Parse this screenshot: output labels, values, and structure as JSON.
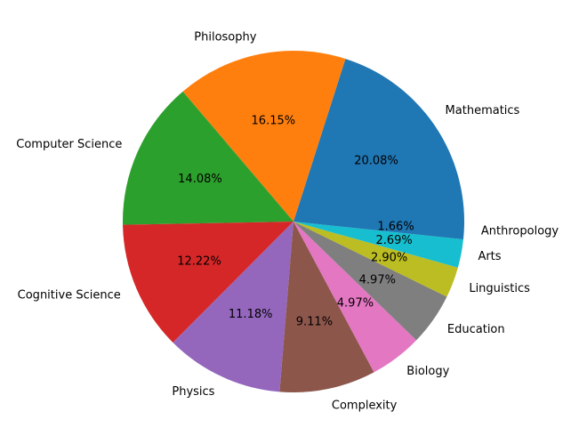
{
  "chart_data": {
    "type": "pie",
    "title": "",
    "start_angle_deg": 0,
    "direction": "counterclockwise",
    "categories": [
      "Mathematics",
      "Philosophy",
      "Computer Science",
      "Cognitive Science",
      "Physics",
      "Complexity",
      "Biology",
      "Education",
      "Linguistics",
      "Arts",
      "Anthropology"
    ],
    "values": [
      20.08,
      16.15,
      14.08,
      12.22,
      11.18,
      9.11,
      4.97,
      4.97,
      2.9,
      2.69,
      1.66
    ],
    "value_labels": [
      "20.08%",
      "16.15%",
      "14.08%",
      "12.22%",
      "11.18%",
      "9.11%",
      "4.97%",
      "4.97%",
      "2.90%",
      "2.69%",
      "1.66%"
    ],
    "colors": [
      "#1f77b4",
      "#ff7f0e",
      "#2ca02c",
      "#d62728",
      "#9467bd",
      "#8c564b",
      "#e377c2",
      "#7f7f7f",
      "#bcbd22",
      "#17becf",
      "#1f77b4"
    ],
    "legend": "none"
  }
}
